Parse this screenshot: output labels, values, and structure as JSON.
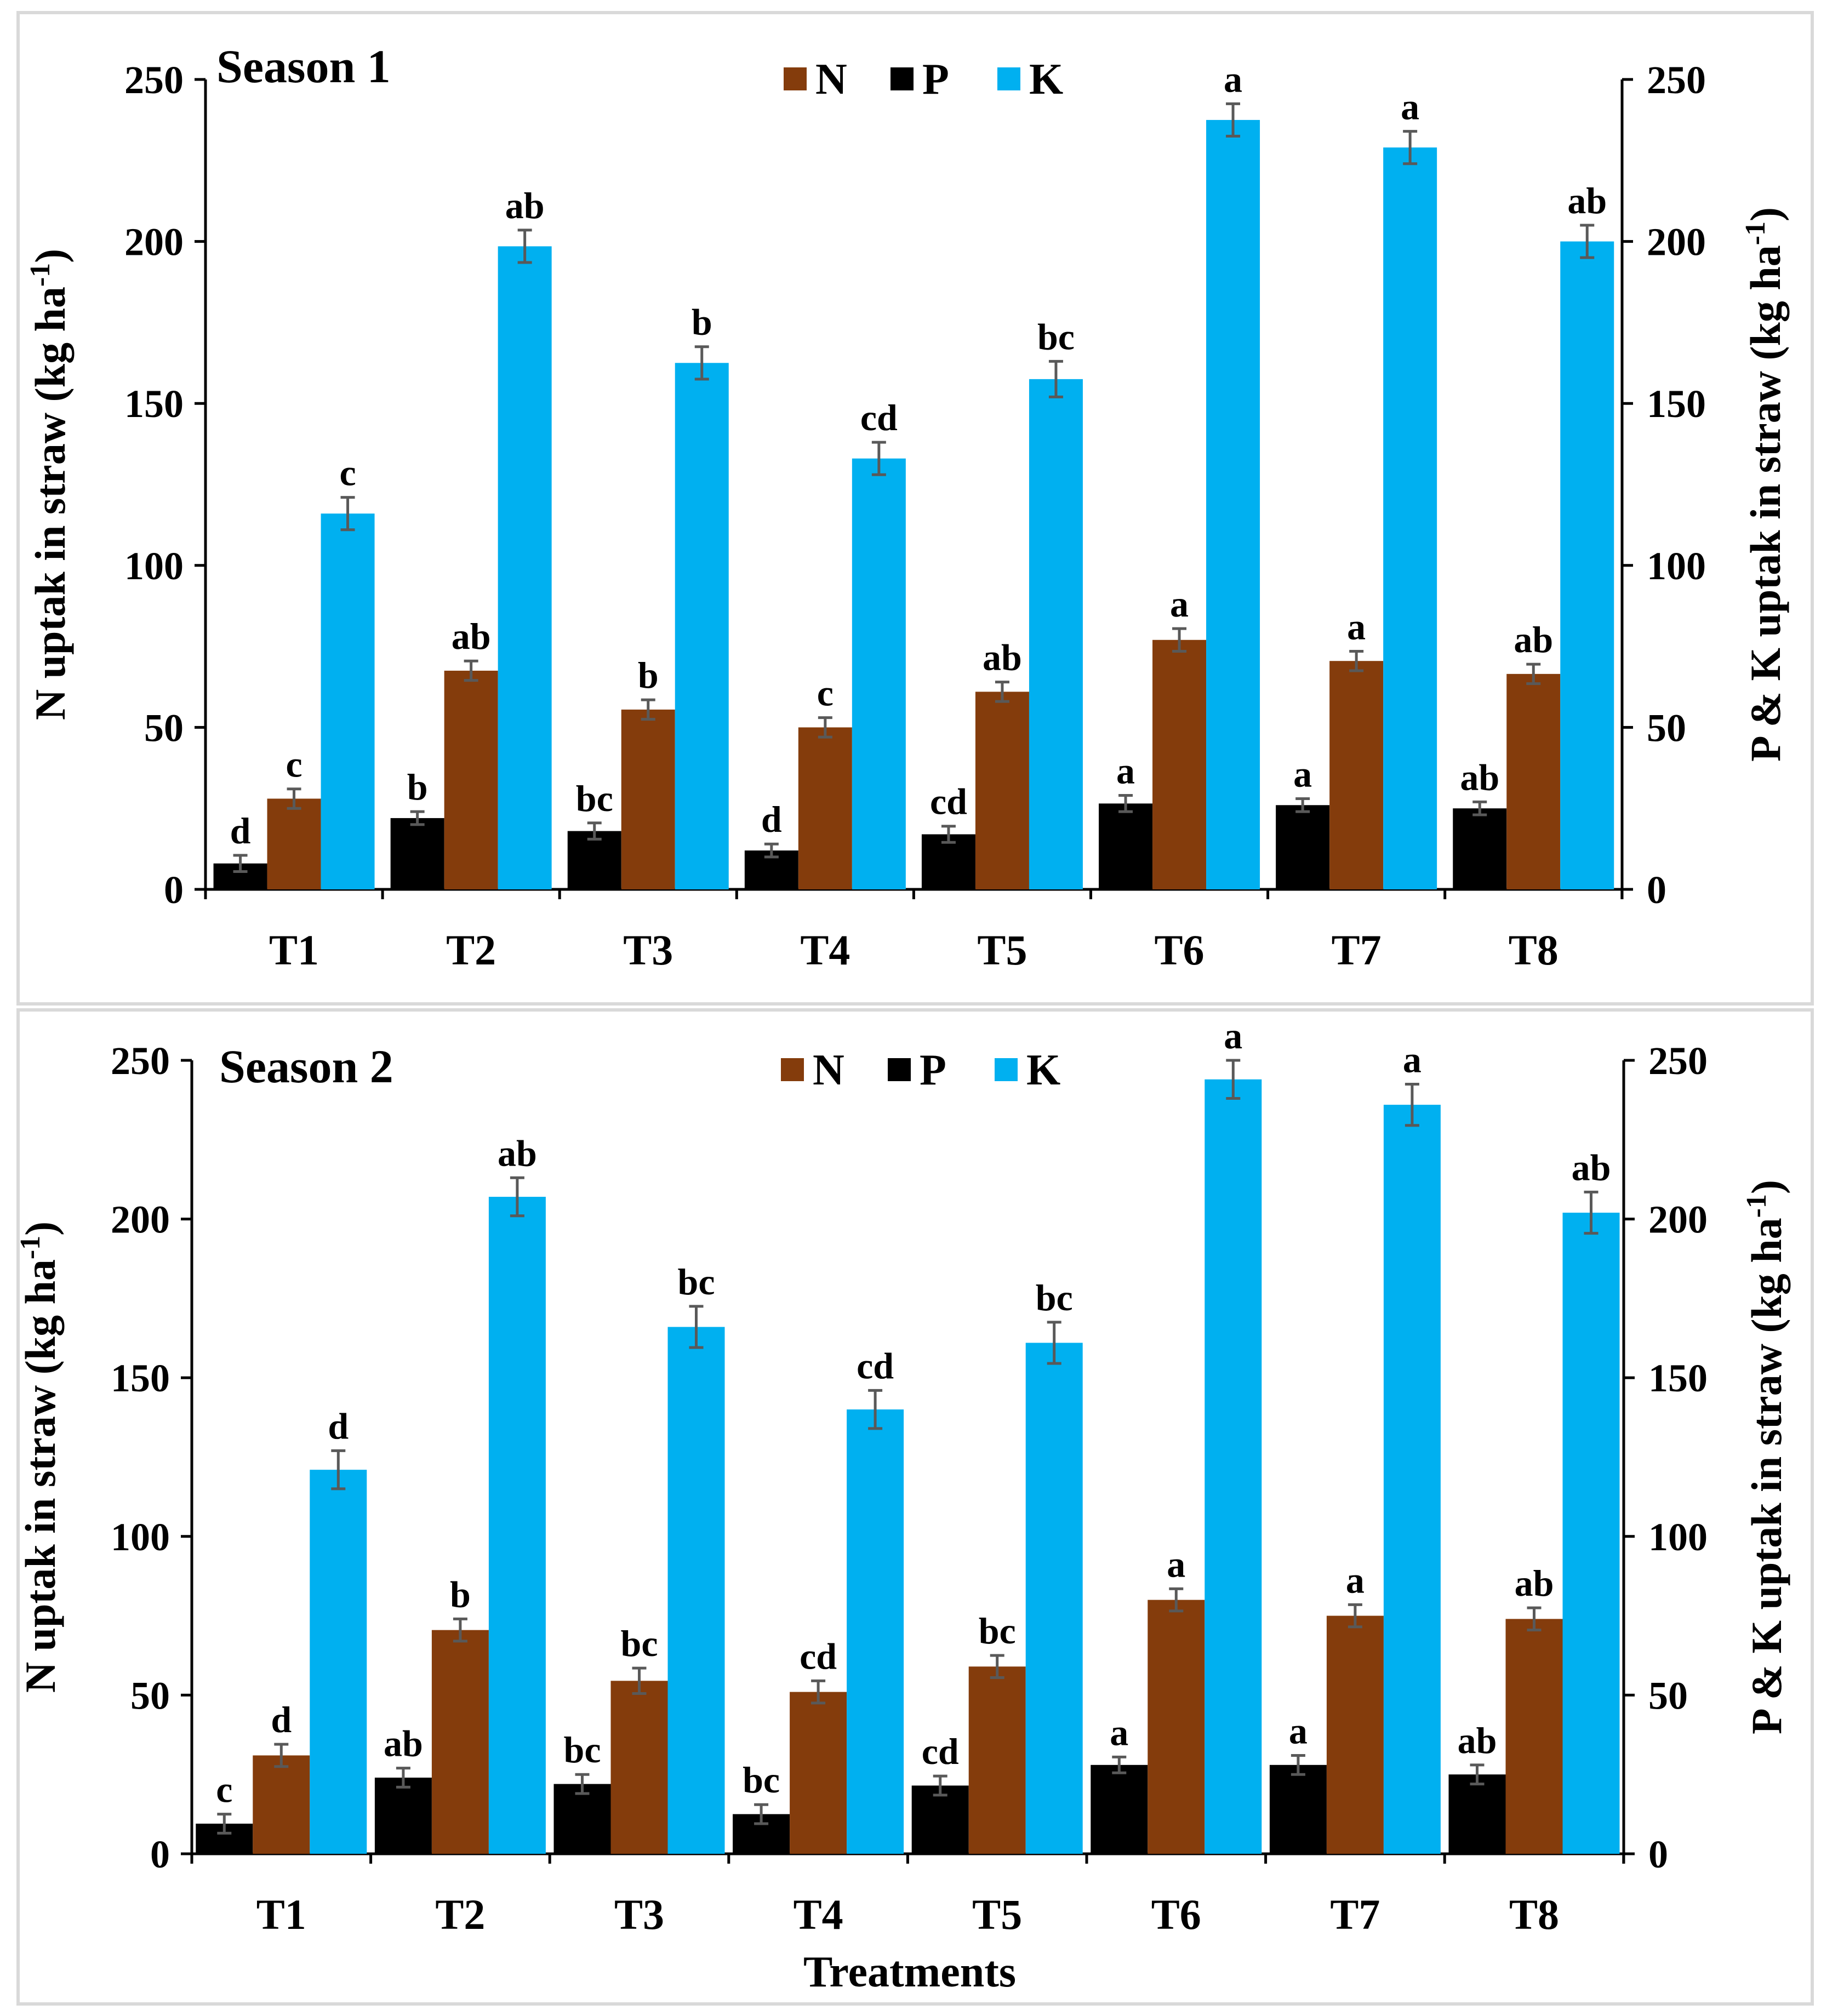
{
  "colors": {
    "N": "#843C0C",
    "P": "#000000",
    "K": "#00B0F0",
    "error_bar": "#595959",
    "frame": "#d9d9d9"
  },
  "x_axis_title": "Treatments",
  "chart_data": [
    {
      "type": "bar",
      "title": "Season 1",
      "categories": [
        "T1",
        "T2",
        "T3",
        "T4",
        "T5",
        "T6",
        "T7",
        "T8"
      ],
      "legend": [
        "N",
        "P",
        "K"
      ],
      "y_left_label": "N uptak in straw (kg ha-1)",
      "y_right_label": "P & K uptak in straw (kg ha-1)",
      "ylim": [
        0,
        250
      ],
      "yticks": [
        "0",
        "50",
        "100",
        "150",
        "200",
        "250"
      ],
      "series": [
        {
          "name": "P",
          "axis": "right",
          "values": [
            8,
            22,
            18,
            12,
            17,
            26.5,
            26,
            25
          ],
          "errors": [
            2.5,
            2,
            2.5,
            2,
            2.5,
            2.5,
            2,
            2
          ],
          "letters": [
            "d",
            "b",
            "bc",
            "d",
            "cd",
            "a",
            "a",
            "ab"
          ]
        },
        {
          "name": "N",
          "axis": "left",
          "values": [
            28,
            67.5,
            55.5,
            50,
            61,
            77,
            70.5,
            66.5
          ],
          "errors": [
            3,
            3,
            3,
            3,
            3,
            3.5,
            3,
            3
          ],
          "letters": [
            "c",
            "ab",
            "b",
            "c",
            "ab",
            "a",
            "a",
            "ab"
          ]
        },
        {
          "name": "K",
          "axis": "right",
          "values": [
            116,
            198.5,
            162.5,
            133,
            157.5,
            237.5,
            229,
            200
          ],
          "errors": [
            5,
            5,
            5,
            5,
            5.5,
            5,
            5,
            5
          ],
          "letters": [
            "c",
            "ab",
            "b",
            "cd",
            "bc",
            "a",
            "a",
            "ab"
          ]
        }
      ]
    },
    {
      "type": "bar",
      "title": "Season 2",
      "categories": [
        "T1",
        "T2",
        "T3",
        "T4",
        "T5",
        "T6",
        "T7",
        "T8"
      ],
      "legend": [
        "N",
        "P",
        "K"
      ],
      "y_left_label": "N uptak in straw (kg ha-1)",
      "y_right_label": "P & K uptak in straw (kg ha-1)",
      "ylim": [
        0,
        250
      ],
      "yticks": [
        "0",
        "50",
        "100",
        "150",
        "200",
        "250"
      ],
      "series": [
        {
          "name": "P",
          "axis": "right",
          "values": [
            9.5,
            24,
            22,
            12.5,
            21.5,
            28,
            28,
            25
          ],
          "errors": [
            3,
            3,
            3,
            3,
            3,
            2.5,
            3,
            3
          ],
          "letters": [
            "c",
            "ab",
            "bc",
            "bc",
            "cd",
            "a",
            "a",
            "ab"
          ]
        },
        {
          "name": "N",
          "axis": "left",
          "values": [
            31,
            70.5,
            54.5,
            51,
            59,
            80,
            75,
            74
          ],
          "errors": [
            3.5,
            3.5,
            4,
            3.5,
            3.5,
            3.5,
            3.5,
            3.5
          ],
          "letters": [
            "d",
            "b",
            "bc",
            "cd",
            "bc",
            "a",
            "a",
            "ab"
          ]
        },
        {
          "name": "K",
          "axis": "right",
          "values": [
            121,
            207,
            166,
            140,
            161,
            244,
            236,
            202
          ],
          "errors": [
            6,
            6,
            6.5,
            6,
            6.5,
            6,
            6.5,
            6.5
          ],
          "letters": [
            "d",
            "ab",
            "bc",
            "cd",
            "bc",
            "a",
            "a",
            "ab"
          ]
        }
      ]
    }
  ]
}
